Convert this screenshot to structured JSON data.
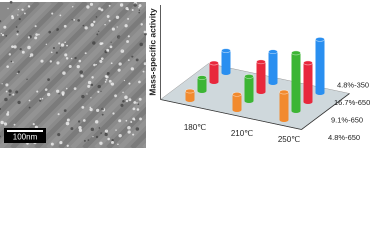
{
  "image": {
    "scale_bar": "100nm"
  },
  "chart_data": {
    "type": "bar3d",
    "y_label": "Mass-specific activity",
    "categories": [
      "180℃",
      "210℃",
      "250℃"
    ],
    "series": [
      {
        "name": "4.8%-650",
        "color": "#f28a2e",
        "values": [
          8,
          14,
          25
        ]
      },
      {
        "name": "9.1%-650",
        "color": "#3cb534",
        "values": [
          12,
          22,
          52
        ]
      },
      {
        "name": "16.7%-650",
        "color": "#e8283c",
        "values": [
          17,
          27,
          35
        ]
      },
      {
        "name": "4.8%-350",
        "color": "#2a8ff0",
        "values": [
          20,
          28,
          48
        ]
      }
    ],
    "ylim": [
      0,
      60
    ]
  }
}
